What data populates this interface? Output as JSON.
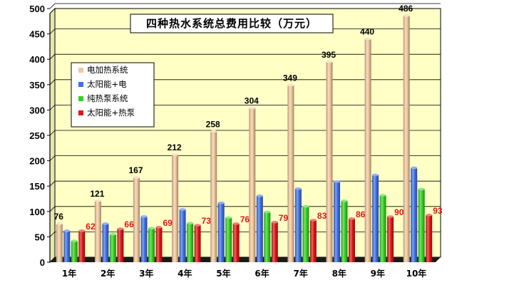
{
  "chart_data": {
    "type": "bar",
    "title": "四种热水系统总费用比较（万元）",
    "categories": [
      "1年",
      "2年",
      "3年",
      "4年",
      "5年",
      "6年",
      "7年",
      "8年",
      "9年",
      "10年"
    ],
    "series": [
      {
        "name": "电加热系统",
        "color": "#F2C79C",
        "values": [
          76,
          121,
          167,
          212,
          258,
          304,
          349,
          395,
          440,
          486
        ],
        "labels_shown": true,
        "label_color": "#000000"
      },
      {
        "name": "太阳能+电",
        "color": "#3D6FE8",
        "values": [
          62,
          76,
          90,
          104,
          117,
          131,
          145,
          159,
          172,
          186
        ],
        "labels_shown": false
      },
      {
        "name": "纯热泵系统",
        "color": "#33D11F",
        "values": [
          42,
          55,
          67,
          77,
          88,
          99,
          110,
          121,
          132,
          144
        ],
        "labels_shown": false
      },
      {
        "name": "太阳能+热泵",
        "color": "#E01515",
        "values": [
          62,
          66,
          69,
          73,
          76,
          79,
          83,
          86,
          90,
          93
        ],
        "labels_shown": true,
        "label_color": "#E01515"
      }
    ],
    "ylim": [
      0,
      500
    ],
    "yticks": [
      0,
      50,
      100,
      150,
      200,
      250,
      300,
      350,
      400,
      450,
      500
    ],
    "xlabel": "",
    "ylabel": "",
    "grid": true,
    "legend_position": "left",
    "colors": {
      "plot_background": "#FFFFC6",
      "grid": "#000000",
      "floor": "#1A1A1A"
    }
  }
}
